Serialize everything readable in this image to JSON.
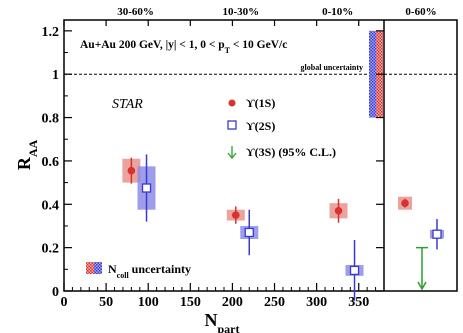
{
  "chart_data": {
    "type": "scatter",
    "xlabel": "N",
    "xlabel_sub": "part",
    "ylabel": "R",
    "ylabel_sub": "AA",
    "xlim": [
      0,
      380
    ],
    "ylim": [
      0,
      1.25
    ],
    "x_ticks": [
      "0",
      "50",
      "100",
      "150",
      "200",
      "250",
      "300",
      "350"
    ],
    "y_ticks": [
      "0",
      "0.2",
      "0.4",
      "0.6",
      "0.8",
      "1",
      "1.2"
    ],
    "x_tick_values": [
      0,
      50,
      100,
      150,
      200,
      250,
      300,
      350
    ],
    "y_tick_values": [
      0,
      0.2,
      0.4,
      0.6,
      0.8,
      1.0,
      1.2
    ],
    "reference_line": 1.0,
    "top_labels": [
      "30-60%",
      "10-30%",
      "0-10%"
    ],
    "top_label_positions": [
      85,
      210,
      325
    ],
    "integrated_panel_label": "0-60%",
    "system_text": "Au+Au 200 GeV, |y| < 1, 0 < p",
    "system_text_sub": "T",
    "system_text_tail": " < 10 GeV/c",
    "global_uncertainty_label": "global uncertainty",
    "global_uncertainty_range": [
      0.8,
      1.2
    ],
    "experiment": "STAR",
    "ncoll_label_main": "N",
    "ncoll_label_sub": "coll",
    "ncoll_label_tail": " uncertainty",
    "series": [
      {
        "name": "ϒ(1S)",
        "color": "#d93030",
        "box_color": "#e8948c",
        "marker": "filled-circle",
        "points": [
          {
            "x": 80,
            "y": 0.555,
            "stat": 0.06,
            "sys": 0.055,
            "ncoll": 0.045
          },
          {
            "x": 204,
            "y": 0.35,
            "stat": 0.04,
            "sys": 0.025,
            "ncoll": 0.02
          },
          {
            "x": 326,
            "y": 0.37,
            "stat": 0.055,
            "sys": 0.035,
            "ncoll": 0.015
          }
        ],
        "integrated": {
          "y": 0.405,
          "stat": 0.02,
          "sys": 0.03
        }
      },
      {
        "name": "ϒ(2S)",
        "color": "#3a3ad0",
        "box_color": "#8c8ce8",
        "marker": "open-square",
        "points": [
          {
            "x": 98,
            "y": 0.475,
            "stat": 0.155,
            "sys": 0.1,
            "ncoll": 0.045
          },
          {
            "x": 220,
            "y": 0.27,
            "stat": 0.105,
            "sys": 0.03,
            "ncoll": 0.02
          },
          {
            "x": 345,
            "y": 0.095,
            "stat": 0.14,
            "sys": 0.025,
            "ncoll": 0.015
          }
        ],
        "integrated": {
          "y": 0.262,
          "stat": 0.07,
          "sys": 0.02
        }
      },
      {
        "name": "ϒ(3S) (95% C.L.)",
        "color": "#2ca02c",
        "marker": "down-arrow",
        "upper_limit": 0.2
      }
    ]
  }
}
